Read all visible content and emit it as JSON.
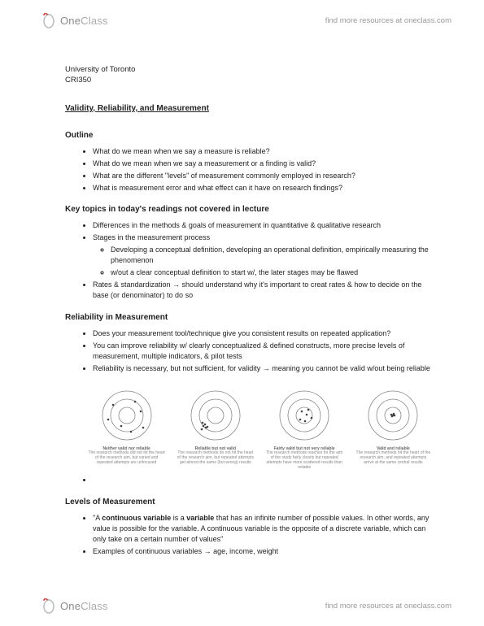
{
  "colors": {
    "page_bg": "#ffffff",
    "text": "#222222",
    "muted": "#999999",
    "logo_primary": "#8a8a8a",
    "logo_secondary": "#aaaaaa",
    "target_stroke": "#888888",
    "dot_fill": "#444444"
  },
  "header": {
    "logo_one": "One",
    "logo_class": "Class",
    "tagline": "find more resources at oneclass.com"
  },
  "footer": {
    "logo_one": "One",
    "logo_class": "Class",
    "tagline": "find more resources at oneclass.com"
  },
  "meta": {
    "university": "University of Toronto",
    "course": "CRI350"
  },
  "page_title": "Validity, Reliability, and Measurement",
  "sections": {
    "outline": {
      "heading": "Outline",
      "items": [
        "What do we mean when we say a measure is reliable?",
        "What do we mean when we say a measurement or a finding is valid?",
        "What are the different \"levels\" of measurement commonly employed in research?",
        "What is measurement error and what effect can it have on research findings?"
      ]
    },
    "key_topics": {
      "heading": "Key topics in today's readings not covered in lecture",
      "items": [
        {
          "text": "Differences in the methods & goals of measurement in quantitative & qualitative research"
        },
        {
          "text": "Stages in the measurement process",
          "sub": [
            "Developing a conceptual definition, developing an operational definition, empirically measuring the phenomenon",
            "w/out a clear conceptual definition to start w/, the later stages may be flawed"
          ]
        },
        {
          "text": "Rates & standardization → should understand why it's important to creat rates & how to decide on the base (or denominator) to do so"
        }
      ]
    },
    "reliability": {
      "heading": "Reliability in Measurement",
      "items": [
        "Does your measurement tool/technique give you consistent results on repeated application?",
        "You can improve reliability w/ clearly conceptualized & defined constructs, more precise levels of measurement, multiple indicators, & pilot tests",
        "Reliability is necessary, but not sufficient, for validity → meaning you cannot be valid w/out being reliable"
      ]
    },
    "levels": {
      "heading": "Levels of Measurement",
      "item1_prefix": "\"A ",
      "item1_bold1": "continuous variable",
      "item1_mid": " is a ",
      "item1_bold2": "variable",
      "item1_rest": " that has an infinite number of possible values. In other words, any value is possible for the variable. A continuous variable is the opposite of a discrete variable, which can only take on a certain number of values\"",
      "item2": "Examples of continuous variables → age, income, weight"
    }
  },
  "targets": {
    "svg": {
      "size": 70,
      "stroke_width": 0.8,
      "dot_r": 1.3
    },
    "cells": [
      {
        "label": "Neither valid nor reliable",
        "caption": "The research methods did not hit the heart of the research aim, but varied and repeated attempts are unfocused",
        "rings": [
          30,
          20,
          10
        ],
        "dots": [
          [
            18,
            22
          ],
          [
            52,
            30
          ],
          [
            28,
            48
          ],
          [
            40,
            55
          ],
          [
            55,
            50
          ],
          [
            12,
            40
          ],
          [
            45,
            18
          ]
        ]
      },
      {
        "label": "Reliable but not valid",
        "caption": "The research methods do not hit the heart of the research aim, but repeated attempts get almost the same (but wrong) results",
        "rings": [
          30,
          20,
          10
        ],
        "dots": [
          [
            20,
            48
          ],
          [
            23,
            50
          ],
          [
            18,
            52
          ],
          [
            22,
            46
          ],
          [
            25,
            49
          ],
          [
            19,
            44
          ]
        ]
      },
      {
        "label": "Fairly valid but not very reliable",
        "caption": "The research methods reaches for the aim of the study fairly clearly but repeated attempts have more scattered results than reliable",
        "rings": [
          30,
          20,
          10
        ],
        "dots": [
          [
            32,
            30
          ],
          [
            40,
            28
          ],
          [
            36,
            42
          ],
          [
            44,
            38
          ],
          [
            30,
            40
          ],
          [
            38,
            34
          ]
        ]
      },
      {
        "label": "Valid and reliable",
        "caption": "The research methods hit the heart of the research aim, and repeated attempts arrive at the same central results",
        "rings": [
          30,
          20,
          10
        ],
        "dots": [
          [
            35,
            35
          ],
          [
            36,
            33
          ],
          [
            34,
            36
          ],
          [
            37,
            35
          ],
          [
            33,
            34
          ]
        ]
      }
    ]
  }
}
